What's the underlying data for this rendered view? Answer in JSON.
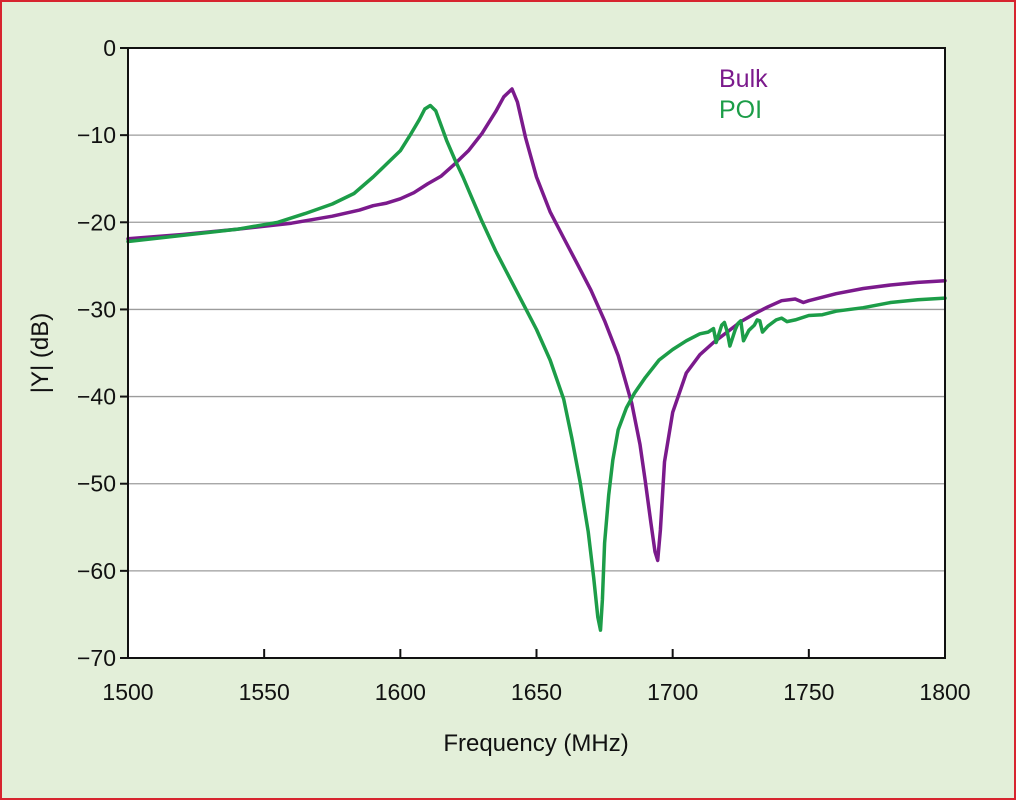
{
  "chart_data": {
    "type": "line",
    "xlabel": "Frequency (MHz)",
    "ylabel": "|Y| (dB)",
    "xlim": [
      1500,
      1800
    ],
    "ylim": [
      -70,
      0
    ],
    "xticks": [
      1500,
      1550,
      1600,
      1650,
      1700,
      1750,
      1800
    ],
    "xtick_labels": [
      "1500",
      "1550",
      "1600",
      "1650",
      "1700",
      "1750",
      "1800"
    ],
    "yticks": [
      0,
      -10,
      -20,
      -30,
      -40,
      -50,
      -60,
      -70
    ],
    "ytick_labels": [
      "0",
      "−10",
      "−20",
      "−30",
      "−40",
      "−50",
      "−60",
      "−70"
    ],
    "grid": "horizontal",
    "legend_position": "top-right",
    "series": [
      {
        "name": "Bulk",
        "color": "#7b1a8c",
        "x": [
          1500,
          1520,
          1540,
          1560,
          1575,
          1585,
          1590,
          1595,
          1600,
          1605,
          1610,
          1615,
          1620,
          1625,
          1630,
          1635,
          1638,
          1641,
          1643,
          1646,
          1650,
          1655,
          1660,
          1665,
          1670,
          1675,
          1680,
          1685,
          1688,
          1690,
          1692,
          1693.5,
          1694.5,
          1695.5,
          1697,
          1700,
          1705,
          1710,
          1715,
          1720,
          1725,
          1730,
          1735,
          1740,
          1745,
          1748,
          1750,
          1760,
          1770,
          1780,
          1790,
          1800
        ],
        "y": [
          -21.9,
          -21.4,
          -20.8,
          -20.1,
          -19.3,
          -18.6,
          -18.1,
          -17.8,
          -17.3,
          -16.6,
          -15.6,
          -14.7,
          -13.3,
          -11.8,
          -9.8,
          -7.3,
          -5.6,
          -4.7,
          -6.2,
          -10.3,
          -14.8,
          -18.8,
          -21.8,
          -24.8,
          -27.8,
          -31.3,
          -35.3,
          -40.8,
          -45.5,
          -49.8,
          -54.5,
          -57.8,
          -58.8,
          -55.3,
          -47.5,
          -41.8,
          -37.3,
          -35.2,
          -33.8,
          -32.6,
          -31.4,
          -30.5,
          -29.7,
          -29.0,
          -28.8,
          -29.2,
          -29.0,
          -28.2,
          -27.6,
          -27.2,
          -26.9,
          -26.7
        ]
      },
      {
        "name": "POI",
        "color": "#1c9d48",
        "x": [
          1500,
          1520,
          1540,
          1555,
          1565,
          1575,
          1583,
          1590,
          1595,
          1600,
          1604,
          1607,
          1609,
          1611,
          1613,
          1615,
          1617,
          1620,
          1623,
          1626,
          1630,
          1635,
          1640,
          1645,
          1650,
          1655,
          1660,
          1663,
          1666,
          1669,
          1671,
          1672.5,
          1673.5,
          1674.2,
          1675,
          1676.5,
          1678,
          1680,
          1683,
          1686,
          1690,
          1695,
          1700,
          1705,
          1710,
          1713,
          1715,
          1716,
          1718,
          1719,
          1720,
          1721,
          1723,
          1724,
          1725,
          1726,
          1728,
          1730,
          1731,
          1732,
          1733,
          1735,
          1738,
          1740,
          1742,
          1745,
          1750,
          1755,
          1760,
          1770,
          1780,
          1790,
          1800
        ],
        "y": [
          -22.2,
          -21.5,
          -20.8,
          -20.0,
          -19.0,
          -17.9,
          -16.7,
          -14.8,
          -13.3,
          -11.8,
          -9.8,
          -8.2,
          -7.0,
          -6.6,
          -7.2,
          -8.9,
          -10.6,
          -12.8,
          -14.8,
          -17.0,
          -19.9,
          -23.3,
          -26.3,
          -29.3,
          -32.3,
          -35.8,
          -40.3,
          -44.8,
          -49.8,
          -55.5,
          -60.8,
          -65.3,
          -66.8,
          -63.3,
          -56.8,
          -51.3,
          -47.3,
          -43.8,
          -41.3,
          -39.6,
          -37.8,
          -35.8,
          -34.6,
          -33.6,
          -32.8,
          -32.6,
          -32.2,
          -33.8,
          -31.8,
          -31.5,
          -32.5,
          -34.2,
          -32.3,
          -31.6,
          -31.3,
          -33.6,
          -32.4,
          -31.8,
          -31.2,
          -31.3,
          -32.6,
          -31.9,
          -31.2,
          -31.0,
          -31.4,
          -31.2,
          -30.7,
          -30.6,
          -30.2,
          -29.8,
          -29.2,
          -28.9,
          -28.7
        ]
      }
    ]
  }
}
